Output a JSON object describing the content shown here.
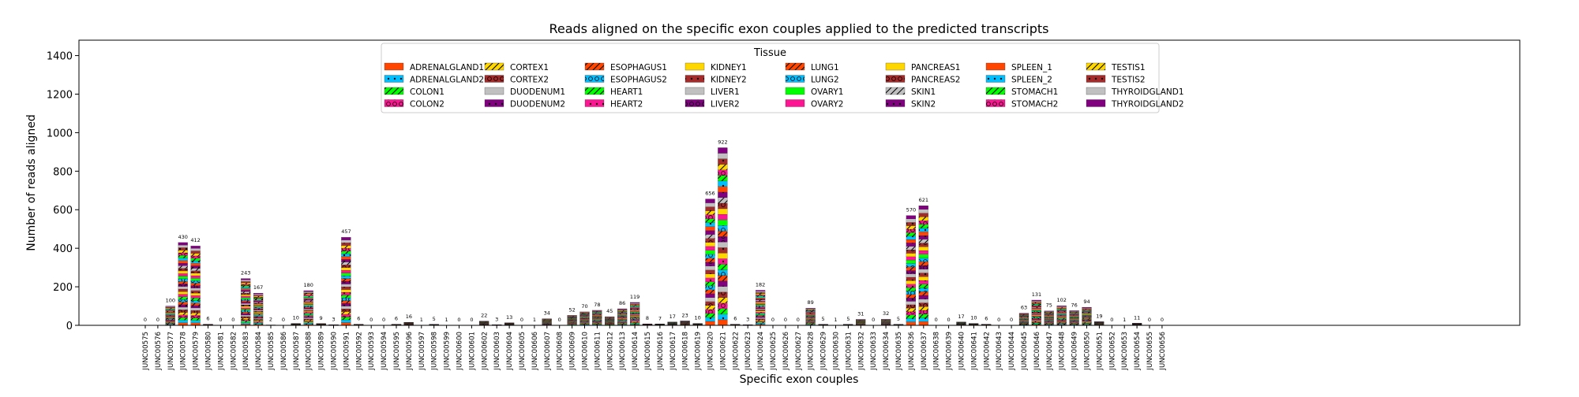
{
  "chart_data": {
    "type": "bar",
    "stacked": true,
    "title": "Reads aligned on the specific exon couples applied to the predicted transcripts",
    "xlabel": "Specific exon couples",
    "ylabel": "Number of reads aligned",
    "ylim": [
      0,
      1480
    ],
    "yticks": [
      0,
      200,
      400,
      600,
      800,
      1000,
      1200,
      1400
    ],
    "grid": false,
    "legend": {
      "title": "Tissue",
      "placement": "top-center",
      "columns": 8,
      "entries": [
        {
          "name": "ADRENALGLAND1",
          "color": "#FF4500",
          "hatch": "none"
        },
        {
          "name": "ADRENALGLAND2",
          "color": "#00BFFF",
          "hatch": "dot"
        },
        {
          "name": "COLON1",
          "color": "#00FF00",
          "hatch": "slash"
        },
        {
          "name": "COLON2",
          "color": "#FF1493",
          "hatch": "circle"
        },
        {
          "name": "CORTEX1",
          "color": "#FFD700",
          "hatch": "slash"
        },
        {
          "name": "CORTEX2",
          "color": "#A52A2A",
          "hatch": "circle"
        },
        {
          "name": "DUODENUM1",
          "color": "#C0C0C0",
          "hatch": "none"
        },
        {
          "name": "DUODENUM2",
          "color": "#800080",
          "hatch": "dot"
        },
        {
          "name": "ESOPHAGUS1",
          "color": "#FF4500",
          "hatch": "slash"
        },
        {
          "name": "ESOPHAGUS2",
          "color": "#00BFFF",
          "hatch": "circle"
        },
        {
          "name": "HEART1",
          "color": "#00FF00",
          "hatch": "slash"
        },
        {
          "name": "HEART2",
          "color": "#FF1493",
          "hatch": "dot"
        },
        {
          "name": "KIDNEY1",
          "color": "#FFD700",
          "hatch": "none"
        },
        {
          "name": "KIDNEY2",
          "color": "#A52A2A",
          "hatch": "dot"
        },
        {
          "name": "LIVER1",
          "color": "#C0C0C0",
          "hatch": "none"
        },
        {
          "name": "LIVER2",
          "color": "#800080",
          "hatch": "circle"
        },
        {
          "name": "LUNG1",
          "color": "#FF4500",
          "hatch": "slash"
        },
        {
          "name": "LUNG2",
          "color": "#00BFFF",
          "hatch": "circle"
        },
        {
          "name": "OVARY1",
          "color": "#00FF00",
          "hatch": "none"
        },
        {
          "name": "OVARY2",
          "color": "#FF1493",
          "hatch": "none"
        },
        {
          "name": "PANCREAS1",
          "color": "#FFD700",
          "hatch": "none"
        },
        {
          "name": "PANCREAS2",
          "color": "#A52A2A",
          "hatch": "circle"
        },
        {
          "name": "SKIN1",
          "color": "#C0C0C0",
          "hatch": "slash"
        },
        {
          "name": "SKIN2",
          "color": "#800080",
          "hatch": "dot"
        },
        {
          "name": "SPLEEN_1",
          "color": "#FF4500",
          "hatch": "none"
        },
        {
          "name": "SPLEEN_2",
          "color": "#00BFFF",
          "hatch": "dot"
        },
        {
          "name": "STOMACH1",
          "color": "#00FF00",
          "hatch": "slash"
        },
        {
          "name": "STOMACH2",
          "color": "#FF1493",
          "hatch": "circle"
        },
        {
          "name": "TESTIS1",
          "color": "#FFD700",
          "hatch": "slash"
        },
        {
          "name": "TESTIS2",
          "color": "#A52A2A",
          "hatch": "dot"
        },
        {
          "name": "THYROIDGLAND1",
          "color": "#C0C0C0",
          "hatch": "none"
        },
        {
          "name": "THYROIDGLAND2",
          "color": "#800080",
          "hatch": "none"
        }
      ]
    },
    "categories": [
      "JUNC00575",
      "JUNC00576",
      "JUNC00577",
      "JUNC00578",
      "JUNC00579",
      "JUNC00580",
      "JUNC00581",
      "JUNC00582",
      "JUNC00583",
      "JUNC00584",
      "JUNC00585",
      "JUNC00586",
      "JUNC00587",
      "JUNC00588",
      "JUNC00589",
      "JUNC00590",
      "JUNC00591",
      "JUNC00592",
      "JUNC00593",
      "JUNC00594",
      "JUNC00595",
      "JUNC00596",
      "JUNC00597",
      "JUNC00598",
      "JUNC00599",
      "JUNC00600",
      "JUNC00601",
      "JUNC00602",
      "JUNC00603",
      "JUNC00604",
      "JUNC00605",
      "JUNC00606",
      "JUNC00607",
      "JUNC00608",
      "JUNC00609",
      "JUNC00610",
      "JUNC00611",
      "JUNC00612",
      "JUNC00613",
      "JUNC00614",
      "JUNC00615",
      "JUNC00616",
      "JUNC00617",
      "JUNC00618",
      "JUNC00619",
      "JUNC00620",
      "JUNC00621",
      "JUNC00622",
      "JUNC00623",
      "JUNC00624",
      "JUNC00625",
      "JUNC00626",
      "JUNC00627",
      "JUNC00628",
      "JUNC00629",
      "JUNC00630",
      "JUNC00631",
      "JUNC00632",
      "JUNC00633",
      "JUNC00634",
      "JUNC00635",
      "JUNC00636",
      "JUNC00637",
      "JUNC00638",
      "JUNC00639",
      "JUNC00640",
      "JUNC00641",
      "JUNC00642",
      "JUNC00643",
      "JUNC00644",
      "JUNC00645",
      "JUNC00646",
      "JUNC00647",
      "JUNC00648",
      "JUNC00649",
      "JUNC00650",
      "JUNC00651",
      "JUNC00652",
      "JUNC00653",
      "JUNC00654",
      "JUNC00655",
      "JUNC00656"
    ],
    "totals": [
      0,
      0,
      100,
      430,
      412,
      6,
      0,
      0,
      243,
      167,
      2,
      0,
      10,
      180,
      9,
      3,
      457,
      6,
      0,
      0,
      6,
      16,
      1,
      5,
      1,
      0,
      0,
      22,
      3,
      13,
      0,
      1,
      34,
      0,
      52,
      70,
      78,
      45,
      86,
      119,
      8,
      7,
      17,
      23,
      10,
      656,
      922,
      6,
      3,
      182,
      0,
      0,
      0,
      89,
      5,
      1,
      5,
      31,
      0,
      32,
      5,
      570,
      621,
      0,
      0,
      17,
      10,
      6,
      0,
      0,
      63,
      131,
      75,
      102,
      76,
      94,
      19,
      0,
      1,
      11,
      0,
      0
    ]
  }
}
